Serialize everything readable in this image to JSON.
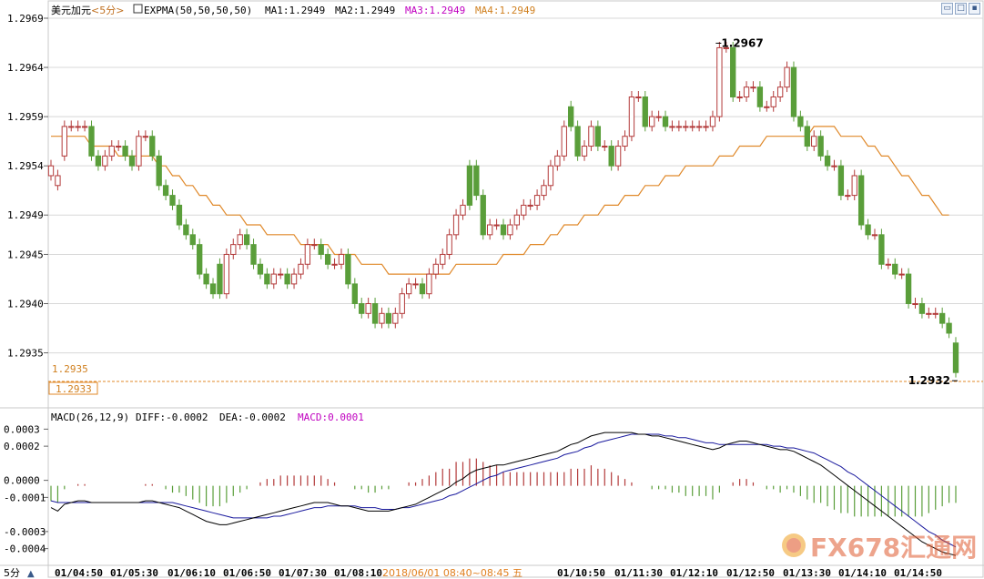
{
  "header": {
    "symbol": "美元加元",
    "period": "<5分>",
    "indicator": "EXPMA(50,50,50,50)",
    "ma1": "MA1:1.2949",
    "ma2": "MA2:1.2949",
    "ma3": "MA3:1.2949",
    "ma4": "MA4:1.2949"
  },
  "window_buttons": [
    {
      "name": "restore-window-icon",
      "glyph": "▭"
    },
    {
      "name": "maximize-window-icon",
      "glyph": "□"
    },
    {
      "name": "close-window-icon",
      "glyph": "▪"
    }
  ],
  "macd_header": {
    "label": "MACD(26,12,9)",
    "diff": "DIFF:-0.0002",
    "dea": "DEA:-0.0002",
    "macd": "MACD:0.0001"
  },
  "markers": {
    "high_label": "1.2967",
    "low_label": "1.2932",
    "ref_price": "1.2935",
    "current_price": "1.2933"
  },
  "footer": {
    "period_button": "5分",
    "period_arrow": "▲",
    "date_label": "2018/06/01 08:40~08:45 五"
  },
  "watermark": "FX678汇通网",
  "colors": {
    "up": "#b33a3a",
    "down": "#5a9e3a",
    "expma": "#e0892a",
    "diff": "#000000",
    "dea": "#1a1a9e",
    "grid": "#d8d8d8",
    "text": "#000000",
    "date_highlight": "#e08020",
    "macd_label": "#c000c0",
    "ma3": "#c000c0",
    "ma4": "#d08020"
  },
  "chart_data": [
    {
      "type": "candlestick",
      "title": "美元加元<5分>",
      "ylim": [
        1.2932,
        1.2969
      ],
      "yticks": [
        "1.2969",
        "1.2964",
        "1.2959",
        "1.2954",
        "1.2949",
        "1.2945",
        "1.2940",
        "1.2935"
      ],
      "xticks": [
        "01/04:50",
        "01/05:30",
        "01/06:10",
        "01/06:50",
        "01/07:30",
        "01/08:10",
        "",
        "01/10:50",
        "01/11:30",
        "01/12:10",
        "01/12:50",
        "01/13:30",
        "01/14:10",
        "01/14:50"
      ],
      "close": [
        1.2954,
        1.2953,
        1.2958,
        1.2958,
        1.2958,
        1.2958,
        1.2955,
        1.2954,
        1.2955,
        1.2956,
        1.2956,
        1.2955,
        1.2954,
        1.2957,
        1.2957,
        1.2955,
        1.2952,
        1.2951,
        1.295,
        1.2948,
        1.2947,
        1.2946,
        1.2943,
        1.2942,
        1.2941,
        1.2941,
        1.2945,
        1.2946,
        1.2947,
        1.2946,
        1.2944,
        1.2943,
        1.2942,
        1.2943,
        1.2943,
        1.2942,
        1.2943,
        1.2944,
        1.2946,
        1.2946,
        1.2945,
        1.2944,
        1.2944,
        1.2945,
        1.2942,
        1.294,
        1.2939,
        1.294,
        1.2938,
        1.2939,
        1.2938,
        1.2939,
        1.2941,
        1.2942,
        1.2942,
        1.2941,
        1.2943,
        1.2944,
        1.2945,
        1.2947,
        1.2949,
        1.295,
        1.295,
        1.2951,
        1.2947,
        1.2948,
        1.2948,
        1.2947,
        1.2948,
        1.2949,
        1.295,
        1.295,
        1.2951,
        1.2952,
        1.2954,
        1.2955,
        1.2958,
        1.2958,
        1.2955,
        1.2956,
        1.2958,
        1.2956,
        1.2956,
        1.2954,
        1.2956,
        1.2957,
        1.2961,
        1.2961,
        1.2958,
        1.2959,
        1.2959,
        1.2958,
        1.2958,
        1.2958,
        1.2958,
        1.2958,
        1.2958,
        1.2958,
        1.2959,
        1.2966,
        1.2966,
        1.2961,
        1.2961,
        1.2962,
        1.2962,
        1.296,
        1.296,
        1.2961,
        1.2962,
        1.2964,
        1.2959,
        1.2958,
        1.2956,
        1.2957,
        1.2955,
        1.2954,
        1.2954,
        1.2951,
        1.2951,
        1.2953,
        1.2948,
        1.2947,
        1.2947,
        1.2944,
        1.2944,
        1.2943,
        1.2943,
        1.294,
        1.294,
        1.2939,
        1.2939,
        1.2939,
        1.2938,
        1.2937,
        1.2933
      ],
      "open": [
        1.2953,
        1.2952,
        1.2955,
        1.2958,
        1.2958,
        1.2958,
        1.2958,
        1.2955,
        1.2954,
        1.2955,
        1.2956,
        1.2956,
        1.2955,
        1.2954,
        1.2957,
        1.2957,
        1.2955,
        1.2952,
        1.2951,
        1.295,
        1.2948,
        1.2947,
        1.2946,
        1.2943,
        1.2942,
        1.2944,
        1.2941,
        1.2945,
        1.2946,
        1.2947,
        1.2946,
        1.2944,
        1.2943,
        1.2942,
        1.2943,
        1.2943,
        1.2942,
        1.2943,
        1.2944,
        1.2946,
        1.2946,
        1.2945,
        1.2944,
        1.2944,
        1.2945,
        1.2942,
        1.294,
        1.2939,
        1.294,
        1.2938,
        1.2939,
        1.2938,
        1.2939,
        1.2941,
        1.2942,
        1.2942,
        1.2941,
        1.2943,
        1.2944,
        1.2945,
        1.2947,
        1.2949,
        1.2954,
        1.2954,
        1.2951,
        1.2947,
        1.2948,
        1.2948,
        1.2947,
        1.2948,
        1.2949,
        1.295,
        1.295,
        1.2951,
        1.2952,
        1.2954,
        1.2955,
        1.296,
        1.2958,
        1.2955,
        1.2956,
        1.2958,
        1.2956,
        1.2956,
        1.2954,
        1.2956,
        1.2957,
        1.2961,
        1.2961,
        1.2958,
        1.2959,
        1.2959,
        1.2958,
        1.2958,
        1.2958,
        1.2958,
        1.2958,
        1.2958,
        1.2958,
        1.2959,
        1.2966,
        1.2966,
        1.2961,
        1.2961,
        1.2962,
        1.2962,
        1.296,
        1.296,
        1.2961,
        1.2962,
        1.2964,
        1.2959,
        1.2958,
        1.2956,
        1.2957,
        1.2955,
        1.2954,
        1.2954,
        1.2951,
        1.2951,
        1.2953,
        1.2948,
        1.2947,
        1.2947,
        1.2944,
        1.2944,
        1.2943,
        1.2943,
        1.294,
        1.294,
        1.2939,
        1.2939,
        1.2939,
        1.2938,
        1.2936
      ]
    },
    {
      "type": "line",
      "name": "EXPMA",
      "values": [
        1.2957,
        1.2957,
        1.2957,
        1.2957,
        1.2957,
        1.2957,
        1.2956,
        1.2956,
        1.2956,
        1.2956,
        1.2955,
        1.2955,
        1.2955,
        1.2955,
        1.2955,
        1.2955,
        1.2954,
        1.2954,
        1.2953,
        1.2953,
        1.2952,
        1.2952,
        1.2951,
        1.2951,
        1.295,
        1.295,
        1.2949,
        1.2949,
        1.2949,
        1.2948,
        1.2948,
        1.2948,
        1.2947,
        1.2947,
        1.2947,
        1.2947,
        1.2947,
        1.2946,
        1.2946,
        1.2946,
        1.2946,
        1.2946,
        1.2945,
        1.2945,
        1.2945,
        1.2945,
        1.2944,
        1.2944,
        1.2944,
        1.2944,
        1.2943,
        1.2943,
        1.2943,
        1.2943,
        1.2943,
        1.2943,
        1.2943,
        1.2943,
        1.2943,
        1.2943,
        1.2944,
        1.2944,
        1.2944,
        1.2944,
        1.2944,
        1.2944,
        1.2944,
        1.2945,
        1.2945,
        1.2945,
        1.2945,
        1.2946,
        1.2946,
        1.2946,
        1.2947,
        1.2947,
        1.2948,
        1.2948,
        1.2948,
        1.2949,
        1.2949,
        1.2949,
        1.295,
        1.295,
        1.295,
        1.2951,
        1.2951,
        1.2951,
        1.2952,
        1.2952,
        1.2952,
        1.2953,
        1.2953,
        1.2953,
        1.2954,
        1.2954,
        1.2954,
        1.2954,
        1.2954,
        1.2955,
        1.2955,
        1.2955,
        1.2956,
        1.2956,
        1.2956,
        1.2956,
        1.2957,
        1.2957,
        1.2957,
        1.2957,
        1.2957,
        1.2957,
        1.2957,
        1.2958,
        1.2958,
        1.2958,
        1.2958,
        1.2957,
        1.2957,
        1.2957,
        1.2957,
        1.2956,
        1.2956,
        1.2955,
        1.2955,
        1.2954,
        1.2953,
        1.2953,
        1.2952,
        1.2951,
        1.2951,
        1.295,
        1.2949,
        1.2949
      ]
    },
    {
      "type": "bar",
      "name": "MACD",
      "ylim": [
        -0.00045,
        0.00035
      ],
      "yticks": [
        "0.0003",
        "0.0002",
        "0.0000",
        "-0.0001",
        "-0.0003",
        "-0.0004"
      ],
      "diff": [
        -0.00016,
        -0.00018,
        -0.00014,
        -0.00013,
        -0.00012,
        -0.00012,
        -0.00013,
        -0.00013,
        -0.00013,
        -0.00013,
        -0.00013,
        -0.00013,
        -0.00013,
        -0.00013,
        -0.00012,
        -0.00012,
        -0.00013,
        -0.00014,
        -0.00015,
        -0.00016,
        -0.00018,
        -0.0002,
        -0.00022,
        -0.00024,
        -0.00025,
        -0.00026,
        -0.00026,
        -0.00025,
        -0.00024,
        -0.00023,
        -0.00022,
        -0.00021,
        -0.0002,
        -0.00019,
        -0.00018,
        -0.00017,
        -0.00016,
        -0.00015,
        -0.00014,
        -0.00013,
        -0.00013,
        -0.00013,
        -0.00014,
        -0.00015,
        -0.00015,
        -0.00016,
        -0.00017,
        -0.00018,
        -0.00018,
        -0.00018,
        -0.00018,
        -0.00017,
        -0.00016,
        -0.00015,
        -0.00014,
        -0.00012,
        -0.0001,
        -8e-05,
        -6e-05,
        -4e-05,
        -1e-05,
        1e-05,
        4e-05,
        6e-05,
        7e-05,
        8e-05,
        9e-05,
        9e-05,
        0.0001,
        0.00011,
        0.00012,
        0.00013,
        0.00014,
        0.00015,
        0.00016,
        0.00017,
        0.00019,
        0.00021,
        0.00022,
        0.00024,
        0.00026,
        0.00027,
        0.00028,
        0.00028,
        0.00028,
        0.00028,
        0.00028,
        0.00027,
        0.00027,
        0.00026,
        0.00026,
        0.00025,
        0.00024,
        0.00023,
        0.00022,
        0.00021,
        0.0002,
        0.00019,
        0.00018,
        0.00019,
        0.00021,
        0.00022,
        0.00023,
        0.00023,
        0.00022,
        0.00021,
        0.0002,
        0.00019,
        0.00018,
        0.00018,
        0.00017,
        0.00015,
        0.00013,
        0.00011,
        9e-05,
        6e-05,
        3e-05,
        0.0,
        -3e-05,
        -6e-05,
        -9e-05,
        -0.00012,
        -0.00015,
        -0.00018,
        -0.00021,
        -0.00024,
        -0.00027,
        -0.0003,
        -0.00033,
        -0.00036,
        -0.00038,
        -0.0004,
        -0.00042,
        -0.00043,
        -0.00044
      ],
      "dea": [
        -0.00012,
        -0.00013,
        -0.00013,
        -0.00013,
        -0.00013,
        -0.00013,
        -0.00013,
        -0.00013,
        -0.00013,
        -0.00013,
        -0.00013,
        -0.00013,
        -0.00013,
        -0.00013,
        -0.00013,
        -0.00013,
        -0.00013,
        -0.00013,
        -0.00013,
        -0.00014,
        -0.00015,
        -0.00016,
        -0.00017,
        -0.00018,
        -0.00019,
        -0.0002,
        -0.00021,
        -0.00022,
        -0.00022,
        -0.00022,
        -0.00022,
        -0.00022,
        -0.00022,
        -0.00021,
        -0.00021,
        -0.0002,
        -0.00019,
        -0.00018,
        -0.00017,
        -0.00016,
        -0.00016,
        -0.00015,
        -0.00015,
        -0.00015,
        -0.00015,
        -0.00015,
        -0.00016,
        -0.00016,
        -0.00016,
        -0.00017,
        -0.00017,
        -0.00017,
        -0.00016,
        -0.00016,
        -0.00015,
        -0.00014,
        -0.00013,
        -0.00012,
        -0.00011,
        -9e-05,
        -8e-05,
        -6e-05,
        -4e-05,
        -2e-05,
        0.0,
        2e-05,
        3e-05,
        5e-05,
        6e-05,
        7e-05,
        8e-05,
        9e-05,
        0.0001,
        0.00011,
        0.00012,
        0.00013,
        0.00015,
        0.00016,
        0.00017,
        0.00019,
        0.0002,
        0.00022,
        0.00023,
        0.00024,
        0.00025,
        0.00026,
        0.00027,
        0.00027,
        0.00027,
        0.00027,
        0.00027,
        0.00026,
        0.00026,
        0.00025,
        0.00025,
        0.00024,
        0.00023,
        0.00022,
        0.00022,
        0.00021,
        0.00021,
        0.00021,
        0.00021,
        0.00021,
        0.00021,
        0.00021,
        0.00021,
        0.0002,
        0.0002,
        0.00019,
        0.00019,
        0.00018,
        0.00017,
        0.00016,
        0.00014,
        0.00012,
        0.0001,
        8e-05,
        5e-05,
        3e-05,
        0.0,
        -3e-05,
        -6e-05,
        -9e-05,
        -0.00012,
        -0.00015,
        -0.00018,
        -0.00021,
        -0.00024,
        -0.00027,
        -0.0003,
        -0.00032,
        -0.00035,
        -0.00037,
        -0.00039
      ],
      "macd": [
        -9e-05,
        -0.0001,
        -2e-05,
        0.0,
        1e-05,
        1e-05,
        0.0,
        0.0,
        0.0,
        0.0,
        0.0,
        0.0,
        0.0,
        0.0,
        1e-05,
        1e-05,
        0.0,
        -2e-05,
        -4e-05,
        -4e-05,
        -6e-05,
        -8e-05,
        -0.0001,
        -0.00012,
        -0.00012,
        -0.00012,
        -0.0001,
        -6e-05,
        -4e-05,
        -2e-05,
        0.0,
        2e-05,
        4e-05,
        4e-05,
        6e-05,
        6e-05,
        6e-05,
        6e-05,
        6e-05,
        6e-05,
        6e-05,
        4e-05,
        2e-05,
        0.0,
        0.0,
        -2e-05,
        -2e-05,
        -4e-05,
        -4e-05,
        -2e-05,
        -2e-05,
        0.0,
        0.0,
        2e-05,
        2e-05,
        4e-05,
        6e-05,
        8e-05,
        0.0001,
        0.0001,
        0.00014,
        0.00014,
        0.00016,
        0.00016,
        0.00014,
        0.00012,
        0.00012,
        8e-05,
        8e-05,
        8e-05,
        8e-05,
        8e-05,
        8e-05,
        8e-05,
        8e-05,
        8e-05,
        8e-05,
        0.0001,
        0.0001,
        0.0001,
        0.00012,
        0.0001,
        0.0001,
        8e-05,
        6e-05,
        4e-05,
        2e-05,
        0.0,
        0.0,
        -2e-05,
        -2e-05,
        -2e-05,
        -4e-05,
        -4e-05,
        -6e-05,
        -6e-05,
        -6e-05,
        -6e-05,
        -8e-05,
        -4e-05,
        0.0,
        2e-05,
        4e-05,
        4e-05,
        2e-05,
        0.0,
        -2e-05,
        -2e-05,
        -4e-05,
        -2e-05,
        -4e-05,
        -6e-05,
        -8e-05,
        -0.0001,
        -0.0001,
        -0.00012,
        -0.00014,
        -0.00016,
        -0.00016,
        -0.00018,
        -0.00018,
        -0.00018,
        -0.00018,
        -0.00018,
        -0.00018,
        -0.00018,
        -0.00018,
        -0.00018,
        -0.00018,
        -0.00018,
        -0.00016,
        -0.00014,
        -0.00012,
        -0.0001,
        -0.0001
      ]
    }
  ]
}
